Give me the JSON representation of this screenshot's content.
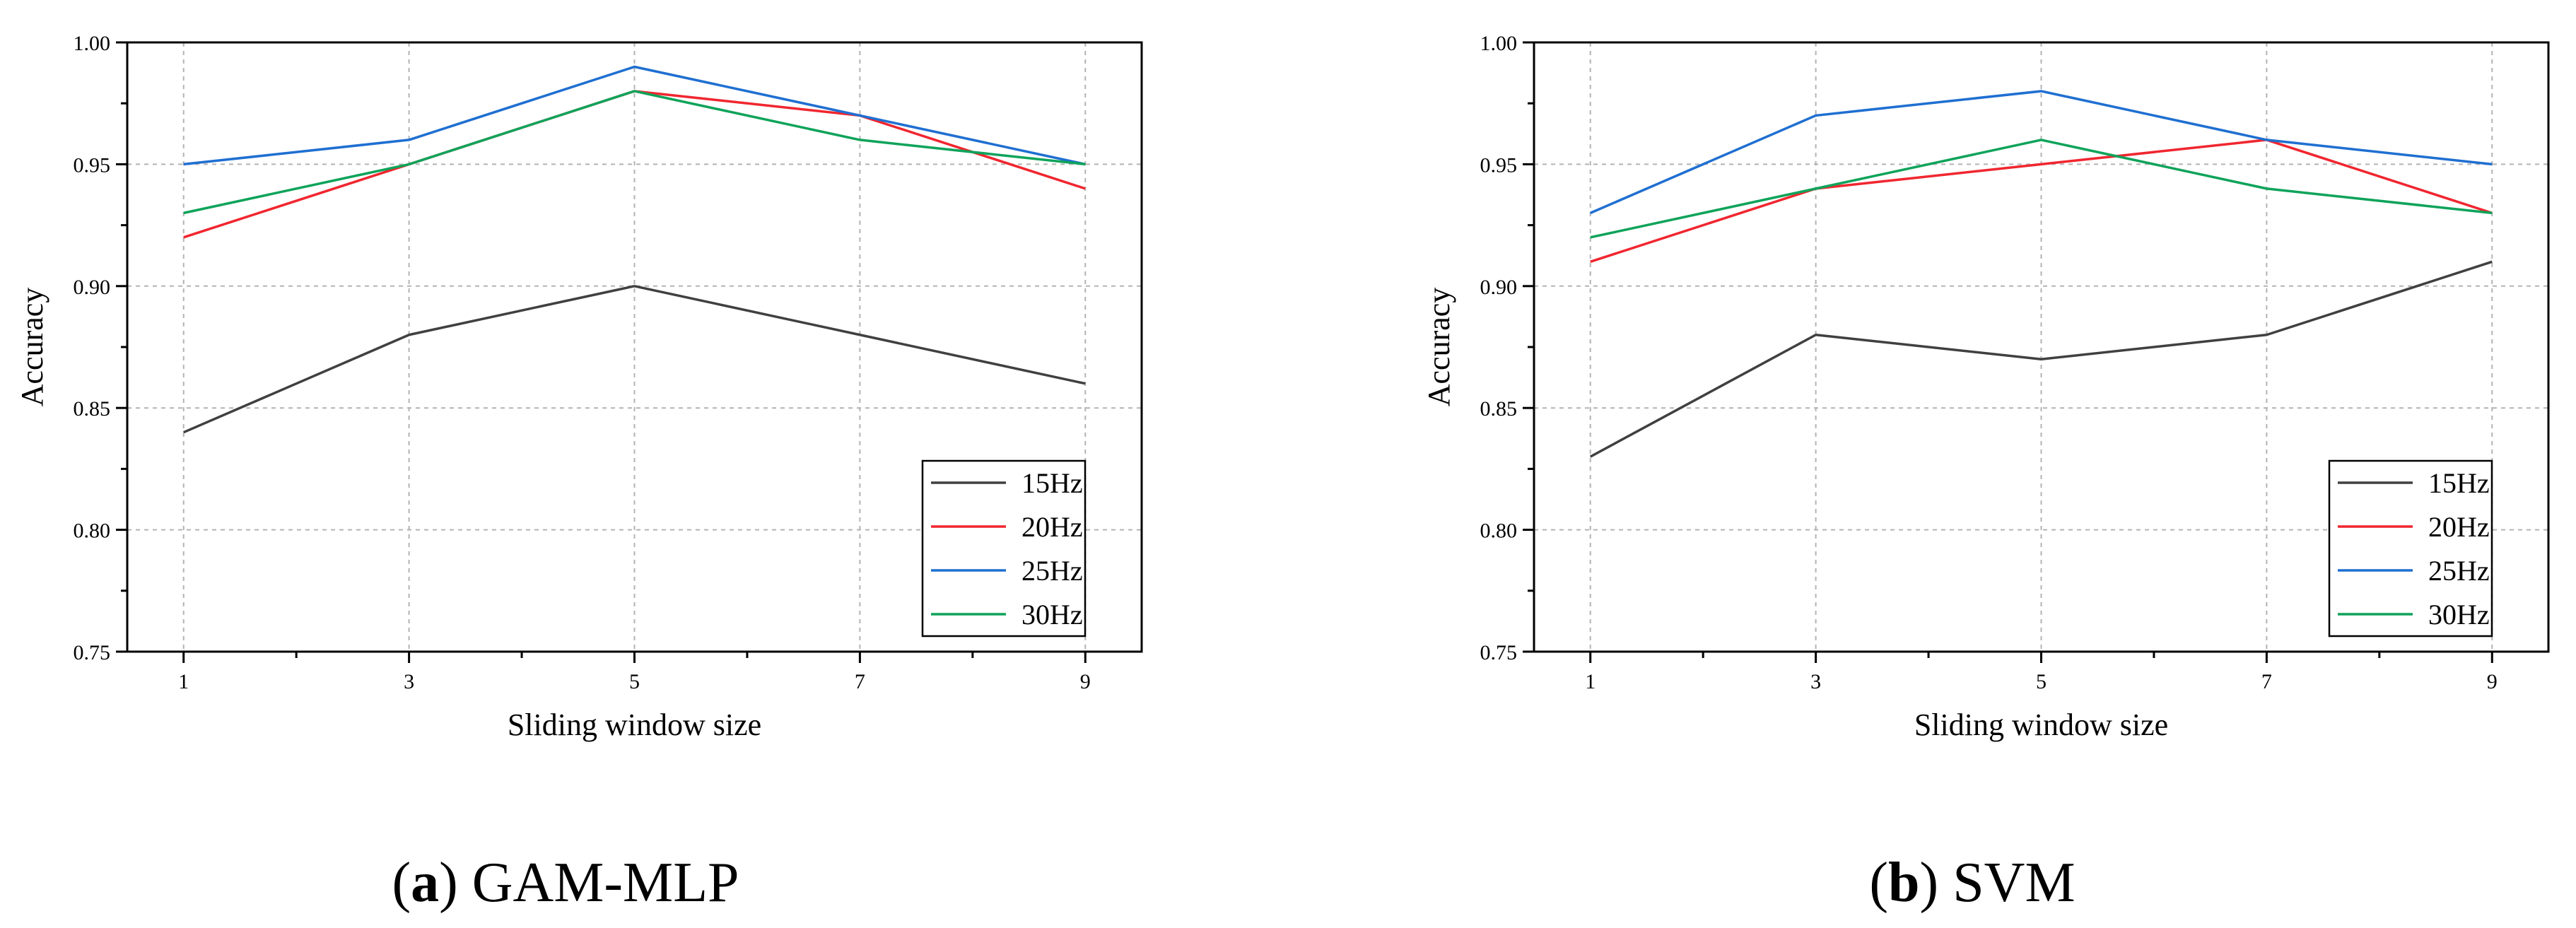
{
  "colors": {
    "15Hz": "#404040",
    "20Hz": "#f0262f",
    "25Hz": "#1f6fd1",
    "30Hz": "#0fa35a",
    "grid": "#b3b3b3",
    "axis": "#000000"
  },
  "chart_data": [
    {
      "id": "a",
      "type": "line",
      "caption_letter": "(a)",
      "caption_name": "GAM-MLP",
      "xlabel": "Sliding window size",
      "ylabel": "Accuracy",
      "x": [
        1,
        3,
        5,
        7,
        9
      ],
      "xticks": [
        "1",
        "3",
        "5",
        "7",
        "9"
      ],
      "xlim": [
        0.5,
        9.5
      ],
      "ylim": [
        0.75,
        1.0
      ],
      "yticks": [
        "0.75",
        "0.80",
        "0.85",
        "0.90",
        "0.95",
        "1.00"
      ],
      "grid": true,
      "legend_position": "bottom-right",
      "series": [
        {
          "name": "15Hz",
          "values": [
            0.84,
            0.88,
            0.9,
            0.88,
            0.86
          ]
        },
        {
          "name": "20Hz",
          "values": [
            0.92,
            0.95,
            0.98,
            0.97,
            0.94
          ]
        },
        {
          "name": "25Hz",
          "values": [
            0.95,
            0.96,
            0.99,
            0.97,
            0.95
          ]
        },
        {
          "name": "30Hz",
          "values": [
            0.93,
            0.95,
            0.98,
            0.96,
            0.95
          ]
        }
      ]
    },
    {
      "id": "b",
      "type": "line",
      "caption_letter": "(b)",
      "caption_name": "SVM",
      "xlabel": "Sliding window size",
      "ylabel": "Accuracy",
      "x": [
        1,
        3,
        5,
        7,
        9
      ],
      "xticks": [
        "1",
        "3",
        "5",
        "7",
        "9"
      ],
      "xlim": [
        0.5,
        9.5
      ],
      "ylim": [
        0.75,
        1.0
      ],
      "yticks": [
        "0.75",
        "0.80",
        "0.85",
        "0.90",
        "0.95",
        "1.00"
      ],
      "grid": true,
      "legend_position": "bottom-right",
      "series": [
        {
          "name": "15Hz",
          "values": [
            0.83,
            0.88,
            0.87,
            0.88,
            0.91
          ]
        },
        {
          "name": "20Hz",
          "values": [
            0.91,
            0.94,
            0.95,
            0.96,
            0.93
          ]
        },
        {
          "name": "25Hz",
          "values": [
            0.93,
            0.97,
            0.98,
            0.96,
            0.95
          ]
        },
        {
          "name": "30Hz",
          "values": [
            0.92,
            0.94,
            0.96,
            0.94,
            0.93
          ]
        }
      ]
    }
  ]
}
